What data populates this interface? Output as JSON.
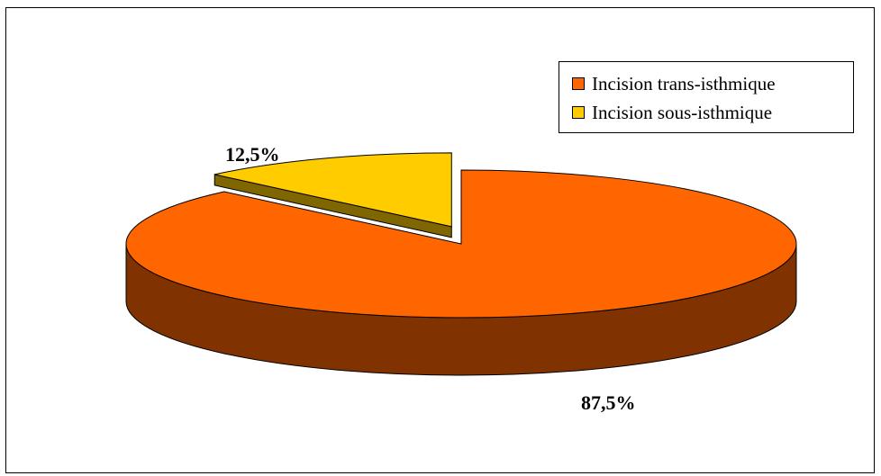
{
  "chart_data": {
    "type": "pie",
    "title": "",
    "categories": [
      "Incision trans-isthmique",
      "Incision sous-isthmique"
    ],
    "values": [
      87.5,
      12.5
    ],
    "data_labels": [
      "87,5%",
      "12,5%"
    ],
    "colors": [
      "#ff6600",
      "#ffcc00"
    ],
    "side_colors": [
      "#803300",
      "#806600"
    ],
    "exploded_slice": "Incision sous-isthmique",
    "style": "3d",
    "legend": "top-right"
  }
}
